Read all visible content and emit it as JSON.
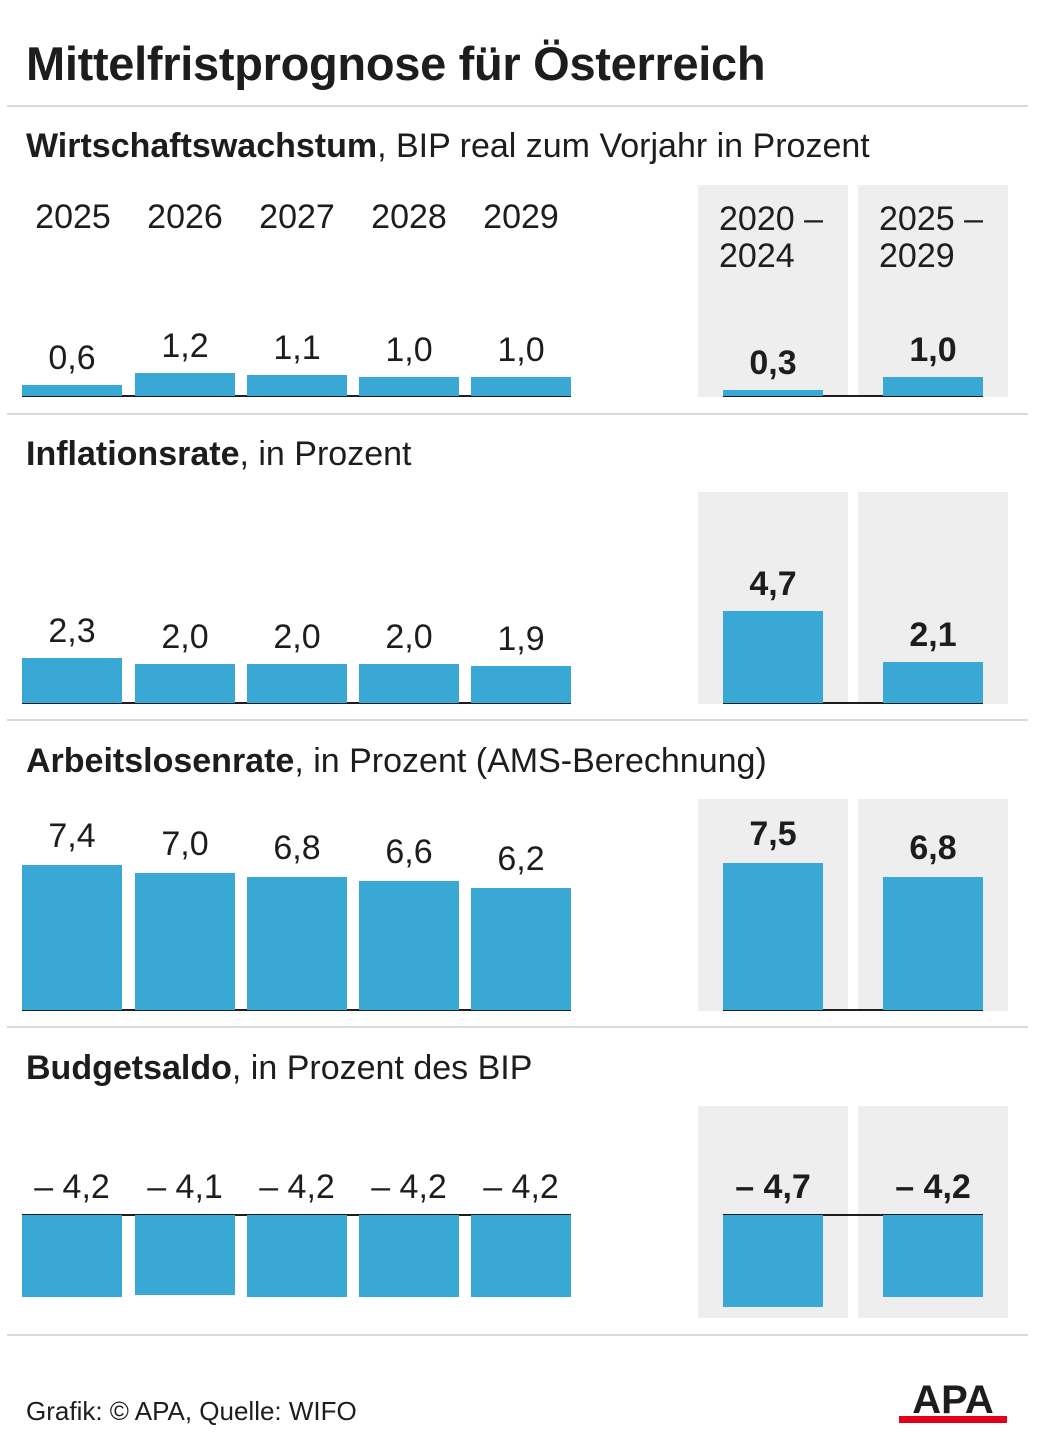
{
  "title": "Mittelfristprognose für Österreich",
  "footer": "Grafik: © APA, Quelle: WIFO",
  "logo_text": "APA",
  "colors": {
    "bar": "#3aa8d4",
    "panel": "#eeeeee",
    "text": "#1d1d1b",
    "logo_red": "#e2001a"
  },
  "years": [
    "2025",
    "2026",
    "2027",
    "2028",
    "2029"
  ],
  "avg_periods": [
    "2020 –\n2024",
    "2025 –\n2029"
  ],
  "chart_data": [
    {
      "type": "bar",
      "title_bold": "Wirtschaftswachstum",
      "title_rest": ", BIP real zum Vorjahr in Prozent",
      "categories": [
        "2025",
        "2026",
        "2027",
        "2028",
        "2029"
      ],
      "values": [
        0.6,
        1.2,
        1.1,
        1.0,
        1.0
      ],
      "labels": [
        "0,6",
        "1,2",
        "1,1",
        "1,0",
        "1,0"
      ],
      "avg_categories": [
        "2020 – 2024",
        "2025 – 2029"
      ],
      "avg_values": [
        0.3,
        1.0
      ],
      "avg_labels": [
        "0,3",
        "1,0"
      ]
    },
    {
      "type": "bar",
      "title_bold": "Inflationsrate",
      "title_rest": ", in Prozent",
      "categories": [
        "2025",
        "2026",
        "2027",
        "2028",
        "2029"
      ],
      "values": [
        2.3,
        2.0,
        2.0,
        2.0,
        1.9
      ],
      "labels": [
        "2,3",
        "2,0",
        "2,0",
        "2,0",
        "1,9"
      ],
      "avg_categories": [
        "2020 – 2024",
        "2025 – 2029"
      ],
      "avg_values": [
        4.7,
        2.1
      ],
      "avg_labels": [
        "4,7",
        "2,1"
      ]
    },
    {
      "type": "bar",
      "title_bold": "Arbeitslosenrate",
      "title_rest": ", in Prozent (AMS-Berechnung)",
      "categories": [
        "2025",
        "2026",
        "2027",
        "2028",
        "2029"
      ],
      "values": [
        7.4,
        7.0,
        6.8,
        6.6,
        6.2
      ],
      "labels": [
        "7,4",
        "7,0",
        "6,8",
        "6,6",
        "6,2"
      ],
      "avg_categories": [
        "2020 – 2024",
        "2025 – 2029"
      ],
      "avg_values": [
        7.5,
        6.8
      ],
      "avg_labels": [
        "7,5",
        "6,8"
      ]
    },
    {
      "type": "bar",
      "title_bold": "Budgetsaldo",
      "title_rest": ", in Prozent des BIP",
      "categories": [
        "2025",
        "2026",
        "2027",
        "2028",
        "2029"
      ],
      "values": [
        -4.2,
        -4.1,
        -4.2,
        -4.2,
        -4.2
      ],
      "labels": [
        "– 4,2",
        "– 4,1",
        "– 4,2",
        "– 4,2",
        "– 4,2"
      ],
      "avg_categories": [
        "2020 – 2024",
        "2025 – 2029"
      ],
      "avg_values": [
        -4.7,
        -4.2
      ],
      "avg_labels": [
        "– 4,7",
        "– 4,2"
      ]
    }
  ]
}
